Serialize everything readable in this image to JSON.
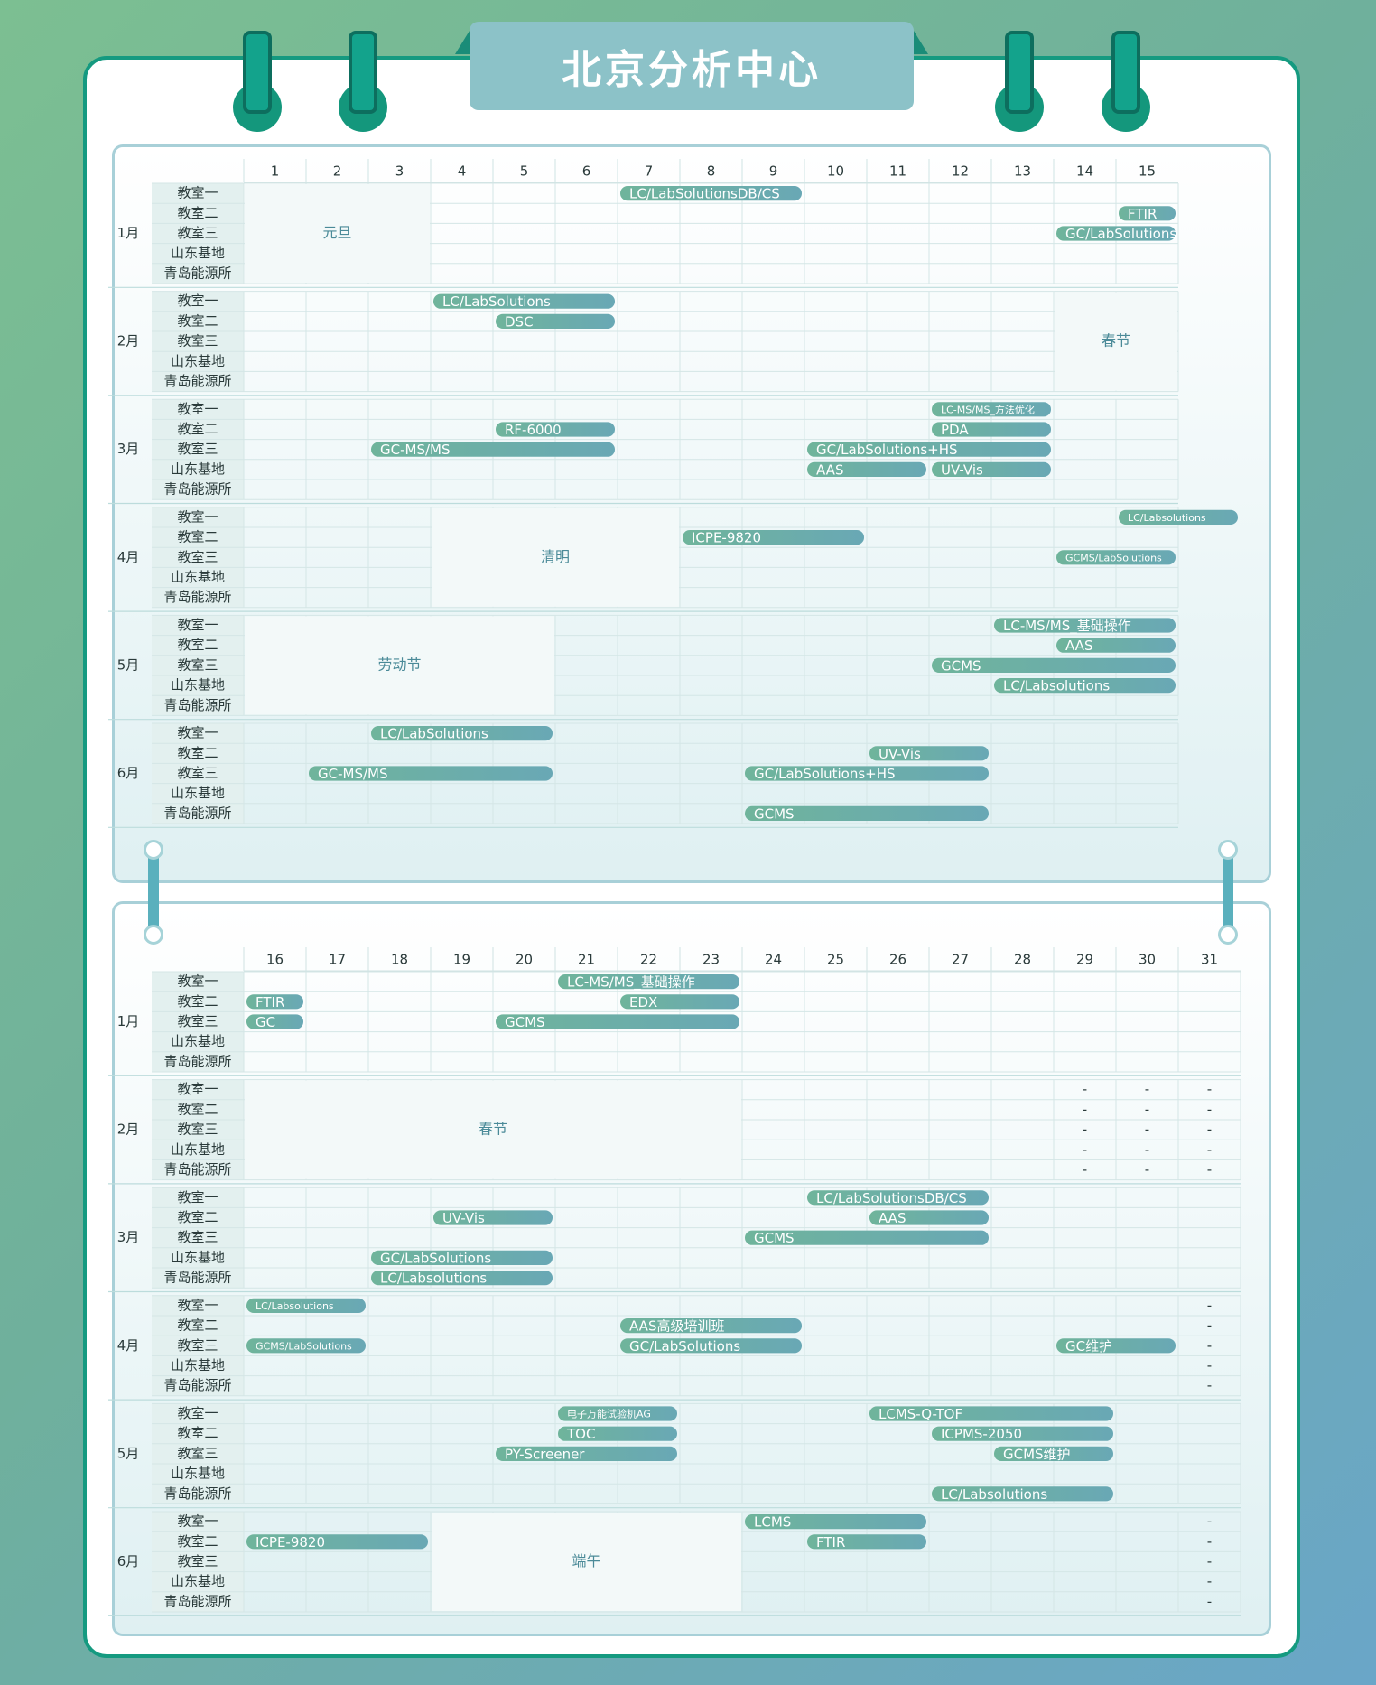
{
  "title": "北京分析中心",
  "colors": {
    "accent": "#159a80",
    "bar": "#6eb39c",
    "bar_end": "#6aa9b5",
    "header_tab": "#8cc2c8"
  },
  "rooms": [
    "教室一",
    "教室二",
    "教室三",
    "山东基地",
    "青岛能源所"
  ],
  "months": [
    "1月",
    "2月",
    "3月",
    "4月",
    "5月",
    "6月"
  ],
  "panels": [
    {
      "days": [
        "1",
        "2",
        "3",
        "4",
        "5",
        "6",
        "7",
        "8",
        "9",
        "10",
        "11",
        "12",
        "13",
        "14",
        "15"
      ],
      "holidays": [
        {
          "month": 0,
          "from": 0,
          "to": 3,
          "label": "元旦"
        },
        {
          "month": 1,
          "from": 13,
          "to": 15,
          "label": "春节"
        },
        {
          "month": 3,
          "from": 3,
          "to": 7,
          "label": "清明"
        },
        {
          "month": 4,
          "from": 0,
          "to": 5,
          "label": "劳动节"
        }
      ],
      "bars": [
        {
          "month": 0,
          "row": 0,
          "from": 6,
          "to": 9,
          "label": "LC/LabSolutionsDB/CS"
        },
        {
          "month": 0,
          "row": 1,
          "from": 14,
          "to": 15,
          "label": "FTIR"
        },
        {
          "month": 0,
          "row": 2,
          "from": 13,
          "to": 15,
          "label": "GC/LabSolutions"
        },
        {
          "month": 1,
          "row": 0,
          "from": 3,
          "to": 6,
          "label": "LC/LabSolutions"
        },
        {
          "month": 1,
          "row": 1,
          "from": 4,
          "to": 6,
          "label": "DSC"
        },
        {
          "month": 2,
          "row": 0,
          "from": 11,
          "to": 13,
          "label": "LC-MS/MS_方法优化",
          "small": true
        },
        {
          "month": 2,
          "row": 1,
          "from": 4,
          "to": 6,
          "label": "RF-6000"
        },
        {
          "month": 2,
          "row": 1,
          "from": 11,
          "to": 13,
          "label": "PDA"
        },
        {
          "month": 2,
          "row": 2,
          "from": 2,
          "to": 6,
          "label": "GC-MS/MS"
        },
        {
          "month": 2,
          "row": 2,
          "from": 9,
          "to": 13,
          "label": "GC/LabSolutions+HS"
        },
        {
          "month": 2,
          "row": 3,
          "from": 9,
          "to": 11,
          "label": "AAS"
        },
        {
          "month": 2,
          "row": 3,
          "from": 11,
          "to": 13,
          "label": "UV-Vis"
        },
        {
          "month": 3,
          "row": 0,
          "from": 14,
          "to": 16,
          "label": "LC/Labsolutions",
          "small": true
        },
        {
          "month": 3,
          "row": 1,
          "from": 7,
          "to": 10,
          "label": "ICPE-9820"
        },
        {
          "month": 3,
          "row": 2,
          "from": 13,
          "to": 15,
          "label": "GCMS/LabSolutions",
          "small": true
        },
        {
          "month": 4,
          "row": 0,
          "from": 12,
          "to": 15,
          "label": "LC-MS/MS_基础操作"
        },
        {
          "month": 4,
          "row": 1,
          "from": 13,
          "to": 15,
          "label": "AAS"
        },
        {
          "month": 4,
          "row": 2,
          "from": 11,
          "to": 15,
          "label": "GCMS"
        },
        {
          "month": 4,
          "row": 3,
          "from": 12,
          "to": 15,
          "label": "LC/Labsolutions"
        },
        {
          "month": 5,
          "row": 0,
          "from": 2,
          "to": 5,
          "label": "LC/LabSolutions"
        },
        {
          "month": 5,
          "row": 1,
          "from": 10,
          "to": 12,
          "label": "UV-Vis"
        },
        {
          "month": 5,
          "row": 2,
          "from": 1,
          "to": 5,
          "label": "GC-MS/MS"
        },
        {
          "month": 5,
          "row": 2,
          "from": 8,
          "to": 12,
          "label": "GC/LabSolutions+HS"
        },
        {
          "month": 5,
          "row": 4,
          "from": 8,
          "to": 12,
          "label": "GCMS"
        }
      ],
      "dashes": []
    },
    {
      "days": [
        "16",
        "17",
        "18",
        "19",
        "20",
        "21",
        "22",
        "23",
        "24",
        "25",
        "26",
        "27",
        "28",
        "29",
        "30",
        "31"
      ],
      "holidays": [
        {
          "month": 1,
          "from": 0,
          "to": 8,
          "label": "春节"
        },
        {
          "month": 5,
          "from": 3,
          "to": 8,
          "label": "端午"
        }
      ],
      "bars": [
        {
          "month": 0,
          "row": 0,
          "from": 5,
          "to": 8,
          "label": "LC-MS/MS_基础操作"
        },
        {
          "month": 0,
          "row": 1,
          "from": 0,
          "to": 1,
          "label": "FTIR"
        },
        {
          "month": 0,
          "row": 1,
          "from": 6,
          "to": 8,
          "label": "EDX"
        },
        {
          "month": 0,
          "row": 2,
          "from": 0,
          "to": 1,
          "label": "GC"
        },
        {
          "month": 0,
          "row": 2,
          "from": 4,
          "to": 8,
          "label": "GCMS"
        },
        {
          "month": 2,
          "row": 0,
          "from": 9,
          "to": 12,
          "label": "LC/LabSolutionsDB/CS"
        },
        {
          "month": 2,
          "row": 1,
          "from": 3,
          "to": 5,
          "label": "UV-Vis"
        },
        {
          "month": 2,
          "row": 1,
          "from": 10,
          "to": 12,
          "label": "AAS"
        },
        {
          "month": 2,
          "row": 2,
          "from": 8,
          "to": 12,
          "label": "GCMS"
        },
        {
          "month": 2,
          "row": 3,
          "from": 2,
          "to": 5,
          "label": "GC/LabSolutions"
        },
        {
          "month": 2,
          "row": 4,
          "from": 2,
          "to": 5,
          "label": "LC/Labsolutions"
        },
        {
          "month": 3,
          "row": 0,
          "from": 0,
          "to": 2,
          "label": "LC/Labsolutions",
          "small": true
        },
        {
          "month": 3,
          "row": 1,
          "from": 6,
          "to": 9,
          "label": "AAS高级培训班"
        },
        {
          "month": 3,
          "row": 2,
          "from": 0,
          "to": 2,
          "label": "GCMS/LabSolutions",
          "small": true
        },
        {
          "month": 3,
          "row": 2,
          "from": 6,
          "to": 9,
          "label": "GC/LabSolutions"
        },
        {
          "month": 3,
          "row": 2,
          "from": 13,
          "to": 15,
          "label": "GC维护"
        },
        {
          "month": 4,
          "row": 0,
          "from": 5,
          "to": 7,
          "label": "电子万能试验机AG",
          "small": true
        },
        {
          "month": 4,
          "row": 0,
          "from": 10,
          "to": 14,
          "label": "LCMS-Q-TOF"
        },
        {
          "month": 4,
          "row": 1,
          "from": 5,
          "to": 7,
          "label": "TOC"
        },
        {
          "month": 4,
          "row": 1,
          "from": 11,
          "to": 14,
          "label": "ICPMS-2050"
        },
        {
          "month": 4,
          "row": 2,
          "from": 4,
          "to": 7,
          "label": "PY-Screener"
        },
        {
          "month": 4,
          "row": 2,
          "from": 12,
          "to": 14,
          "label": "GCMS维护"
        },
        {
          "month": 4,
          "row": 4,
          "from": 11,
          "to": 14,
          "label": "LC/Labsolutions"
        },
        {
          "month": 5,
          "row": 0,
          "from": 8,
          "to": 11,
          "label": "LCMS"
        },
        {
          "month": 5,
          "row": 1,
          "from": 0,
          "to": 3,
          "label": "ICPE-9820"
        },
        {
          "month": 5,
          "row": 1,
          "from": 9,
          "to": 11,
          "label": "FTIR"
        }
      ],
      "dashes": [
        {
          "month": 1,
          "cols": [
            13,
            14,
            15
          ],
          "text": "-"
        },
        {
          "month": 3,
          "cols": [
            15
          ],
          "text": "-"
        },
        {
          "month": 5,
          "cols": [
            15
          ],
          "text": "-"
        }
      ]
    }
  ]
}
